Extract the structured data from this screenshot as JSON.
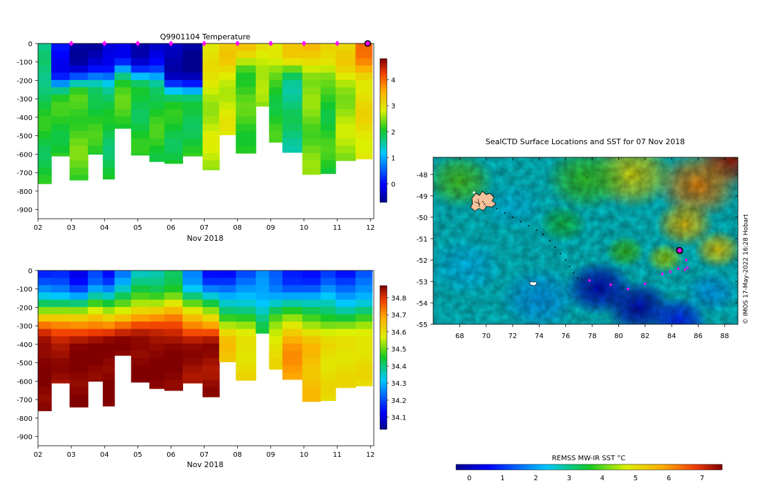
{
  "colors": {
    "background": "#ffffff",
    "marker": "#ff00ff",
    "axis": "#000000"
  },
  "chart_data": [
    {
      "type": "heatmap",
      "name": "temperature-section",
      "title": "Q9901104  Temperature",
      "xlabel": "Nov 2018",
      "x_ticks": [
        "02",
        "03",
        "04",
        "05",
        "06",
        "07",
        "08",
        "09",
        "10",
        "11",
        "12"
      ],
      "xlim": [
        2,
        12.1
      ],
      "ylim": [
        0,
        -950
      ],
      "y_ticks": [
        "0",
        "-100",
        "-200",
        "-300",
        "-400",
        "-500",
        "-600",
        "-700",
        "-800",
        "-900"
      ],
      "y_tick_values": [
        0,
        -100,
        -200,
        -300,
        -400,
        -500,
        -600,
        -700,
        -800,
        -900
      ],
      "colorbar": {
        "ticks": [
          "0",
          "1",
          "2",
          "3",
          "4"
        ],
        "tick_values": [
          0,
          1,
          2,
          3,
          4
        ],
        "range": [
          -0.7,
          4.8
        ],
        "colormap": "jet"
      },
      "profile_markers_day": [
        3,
        4,
        5,
        6,
        7,
        8,
        9,
        10,
        11
      ],
      "current_marker_day": 12,
      "profiles": [
        {
          "day": 2.0,
          "max_depth": -760,
          "surface": 1.6,
          "thermocline": -220,
          "deep": 2.0
        },
        {
          "day": 2.4,
          "max_depth": -610,
          "surface": -0.1,
          "thermocline": -220,
          "deep": 2.1
        },
        {
          "day": 2.95,
          "max_depth": -740,
          "surface": -0.5,
          "thermocline": -200,
          "deep": 2.3
        },
        {
          "day": 3.5,
          "max_depth": -600,
          "surface": -0.5,
          "thermocline": -190,
          "deep": 2.1
        },
        {
          "day": 3.95,
          "max_depth": -735,
          "surface": -0.4,
          "thermocline": -180,
          "deep": 1.9
        },
        {
          "day": 4.3,
          "max_depth": -460,
          "surface": -0.3,
          "thermocline": -130,
          "deep": 2.2
        },
        {
          "day": 4.8,
          "max_depth": -605,
          "surface": -0.4,
          "thermocline": -170,
          "deep": 2.0
        },
        {
          "day": 5.35,
          "max_depth": -640,
          "surface": -0.3,
          "thermocline": -180,
          "deep": 2.1
        },
        {
          "day": 5.8,
          "max_depth": -650,
          "surface": -0.6,
          "thermocline": -230,
          "deep": 2.0
        },
        {
          "day": 6.35,
          "max_depth": -610,
          "surface": -0.6,
          "thermocline": -250,
          "deep": 2.0
        },
        {
          "day": 6.95,
          "max_depth": -685,
          "surface": 3.1,
          "thermocline": -150,
          "deep": 2.7
        },
        {
          "day": 7.45,
          "max_depth": -495,
          "surface": 3.2,
          "thermocline": -120,
          "deep": 2.8
        },
        {
          "day": 7.95,
          "max_depth": -595,
          "surface": 3.2,
          "thermocline": -100,
          "deep": 2.2
        },
        {
          "day": 8.55,
          "max_depth": -340,
          "surface": 3.1,
          "thermocline": -120,
          "deep": 2.5
        },
        {
          "day": 8.95,
          "max_depth": -535,
          "surface": 3.1,
          "thermocline": -110,
          "deep": 2.1
        },
        {
          "day": 9.35,
          "max_depth": -590,
          "surface": 3.2,
          "thermocline": -130,
          "deep": 1.7
        },
        {
          "day": 9.95,
          "max_depth": -710,
          "surface": 3.3,
          "thermocline": -150,
          "deep": 2.4
        },
        {
          "day": 10.5,
          "max_depth": -705,
          "surface": 3.3,
          "thermocline": -140,
          "deep": 2.1
        },
        {
          "day": 10.95,
          "max_depth": -635,
          "surface": 3.2,
          "thermocline": -150,
          "deep": 2.6
        },
        {
          "day": 11.55,
          "max_depth": -625,
          "surface": 3.8,
          "thermocline": -160,
          "deep": 3.0
        }
      ]
    },
    {
      "type": "heatmap",
      "name": "salinity-section",
      "title": "",
      "xlabel": "Nov 2018",
      "x_ticks": [
        "02",
        "03",
        "04",
        "05",
        "06",
        "07",
        "08",
        "09",
        "10",
        "11",
        "12"
      ],
      "xlim": [
        2,
        12.1
      ],
      "ylim": [
        0,
        -950
      ],
      "y_ticks": [
        "0",
        "-100",
        "-200",
        "-300",
        "-400",
        "-500",
        "-600",
        "-700",
        "-800",
        "-900"
      ],
      "y_tick_values": [
        0,
        -100,
        -200,
        -300,
        -400,
        -500,
        -600,
        -700,
        -800,
        -900
      ],
      "colorbar": {
        "ticks": [
          "34.1",
          "34.2",
          "34.3",
          "34.4",
          "34.5",
          "34.6",
          "34.7",
          "34.8"
        ],
        "tick_values": [
          34.1,
          34.2,
          34.3,
          34.4,
          34.5,
          34.6,
          34.7,
          34.8
        ],
        "range": [
          34.03,
          34.87
        ],
        "colormap": "jet"
      },
      "profiles": [
        {
          "day": 2.0,
          "max_depth": -760,
          "surface": 34.15,
          "deep": 34.87
        },
        {
          "day": 2.4,
          "max_depth": -610,
          "surface": 34.15,
          "deep": 34.85
        },
        {
          "day": 2.95,
          "max_depth": -740,
          "surface": 34.1,
          "deep": 34.87
        },
        {
          "day": 3.5,
          "max_depth": -600,
          "surface": 34.2,
          "deep": 34.87
        },
        {
          "day": 3.95,
          "max_depth": -735,
          "surface": 34.15,
          "deep": 34.87
        },
        {
          "day": 4.3,
          "max_depth": -460,
          "surface": 34.25,
          "deep": 34.87
        },
        {
          "day": 4.8,
          "max_depth": -605,
          "surface": 34.35,
          "deep": 34.87
        },
        {
          "day": 5.35,
          "max_depth": -640,
          "surface": 34.35,
          "deep": 34.87
        },
        {
          "day": 5.8,
          "max_depth": -650,
          "surface": 34.4,
          "deep": 34.87
        },
        {
          "day": 6.35,
          "max_depth": -610,
          "surface": 34.25,
          "deep": 34.85
        },
        {
          "day": 6.95,
          "max_depth": -685,
          "surface": 34.15,
          "deep": 34.85
        },
        {
          "day": 7.45,
          "max_depth": -495,
          "surface": 34.15,
          "deep": 34.65
        },
        {
          "day": 7.95,
          "max_depth": -595,
          "surface": 34.2,
          "deep": 34.6
        },
        {
          "day": 8.55,
          "max_depth": -340,
          "surface": 34.25,
          "deep": 34.45
        },
        {
          "day": 8.95,
          "max_depth": -535,
          "surface": 34.2,
          "deep": 34.6
        },
        {
          "day": 9.35,
          "max_depth": -590,
          "surface": 34.15,
          "deep": 34.7
        },
        {
          "day": 9.95,
          "max_depth": -710,
          "surface": 34.15,
          "deep": 34.65
        },
        {
          "day": 10.5,
          "max_depth": -705,
          "surface": 34.2,
          "deep": 34.6
        },
        {
          "day": 10.95,
          "max_depth": -635,
          "surface": 34.15,
          "deep": 34.6
        },
        {
          "day": 11.55,
          "max_depth": -625,
          "surface": 34.2,
          "deep": 34.6
        }
      ]
    },
    {
      "type": "heatmap",
      "name": "sst-map",
      "title": "SealCTD Surface Locations and SST for 07 Nov 2018",
      "xlim": [
        66,
        89
      ],
      "ylim": [
        -55,
        -47.2
      ],
      "x_ticks": [
        "68",
        "70",
        "72",
        "74",
        "76",
        "78",
        "80",
        "82",
        "84",
        "86",
        "88"
      ],
      "x_tick_values": [
        68,
        70,
        72,
        74,
        76,
        78,
        80,
        82,
        84,
        86,
        88
      ],
      "y_ticks": [
        "-48",
        "-49",
        "-50",
        "-51",
        "-52",
        "-53",
        "-54",
        "-55"
      ],
      "y_tick_values": [
        -48,
        -49,
        -50,
        -51,
        -52,
        -53,
        -54,
        -55
      ],
      "credit": "© IMOS 17-May-2022 16:28 Hobart",
      "colorbar": {
        "label": "REMSS MW-IR SST °C",
        "ticks": [
          "0",
          "1",
          "2",
          "3",
          "4",
          "5",
          "6",
          "7"
        ],
        "tick_values": [
          0,
          1,
          2,
          3,
          4,
          5,
          6,
          7
        ],
        "range": [
          -0.4,
          7.6
        ],
        "colormap": "jet"
      },
      "track_dark": [
        [
          70.8,
          -49.6
        ],
        [
          71.4,
          -49.8
        ],
        [
          72.0,
          -50.0
        ],
        [
          72.6,
          -50.2
        ],
        [
          73.2,
          -50.4
        ],
        [
          73.8,
          -50.6
        ],
        [
          74.3,
          -50.8
        ],
        [
          74.8,
          -51.1
        ],
        [
          75.2,
          -51.4
        ],
        [
          75.6,
          -51.7
        ],
        [
          76.0,
          -52.0
        ],
        [
          76.3,
          -52.3
        ],
        [
          76.6,
          -52.6
        ],
        [
          76.9,
          -52.85
        ]
      ],
      "track_magenta": [
        [
          77.8,
          -52.95
        ],
        [
          79.4,
          -53.15
        ],
        [
          80.7,
          -53.35
        ],
        [
          82.0,
          -53.1
        ],
        [
          83.3,
          -52.65
        ],
        [
          83.9,
          -52.55
        ],
        [
          84.5,
          -52.4
        ],
        [
          85.0,
          -52.45
        ],
        [
          85.2,
          -52.35
        ],
        [
          85.1,
          -52.0
        ]
      ],
      "current_position": [
        84.6,
        -51.55
      ],
      "land": [
        {
          "name": "kerguelen",
          "center": [
            69.6,
            -49.3
          ]
        },
        {
          "name": "heard",
          "center": [
            73.5,
            -53.1
          ]
        }
      ],
      "sst_features": [
        {
          "lon": 88.5,
          "lat": -47.3,
          "value": 7.3,
          "spread": 2.6
        },
        {
          "lon": 86.0,
          "lat": -48.5,
          "value": 6.2,
          "spread": 3.2
        },
        {
          "lon": 81.0,
          "lat": -48.0,
          "value": 5.0,
          "spread": 3.2
        },
        {
          "lon": 85.0,
          "lat": -50.3,
          "value": 5.4,
          "spread": 2.2
        },
        {
          "lon": 87.5,
          "lat": -51.5,
          "value": 5.2,
          "spread": 1.8
        },
        {
          "lon": 77.5,
          "lat": -48.2,
          "value": 3.8,
          "spread": 3.0
        },
        {
          "lon": 68.0,
          "lat": -48.3,
          "value": 3.9,
          "spread": 2.6
        },
        {
          "lon": 72.0,
          "lat": -49.5,
          "value": 2.4,
          "spread": 2.4
        },
        {
          "lon": 68.5,
          "lat": -52.3,
          "value": 2.3,
          "spread": 2.8
        },
        {
          "lon": 74.0,
          "lat": -53.8,
          "value": 2.0,
          "spread": 3.0
        },
        {
          "lon": 78.5,
          "lat": -53.3,
          "value": 0.1,
          "spread": 2.6
        },
        {
          "lon": 81.5,
          "lat": -54.2,
          "value": 0.0,
          "spread": 2.6
        },
        {
          "lon": 84.5,
          "lat": -54.8,
          "value": 0.8,
          "spread": 2.2
        },
        {
          "lon": 87.0,
          "lat": -53.5,
          "value": 2.0,
          "spread": 2.0
        },
        {
          "lon": 80.5,
          "lat": -51.6,
          "value": 3.8,
          "spread": 1.5
        },
        {
          "lon": 83.5,
          "lat": -51.9,
          "value": 4.4,
          "spread": 1.4
        },
        {
          "lon": 75.8,
          "lat": -50.3,
          "value": 3.4,
          "spread": 1.8
        }
      ]
    }
  ]
}
